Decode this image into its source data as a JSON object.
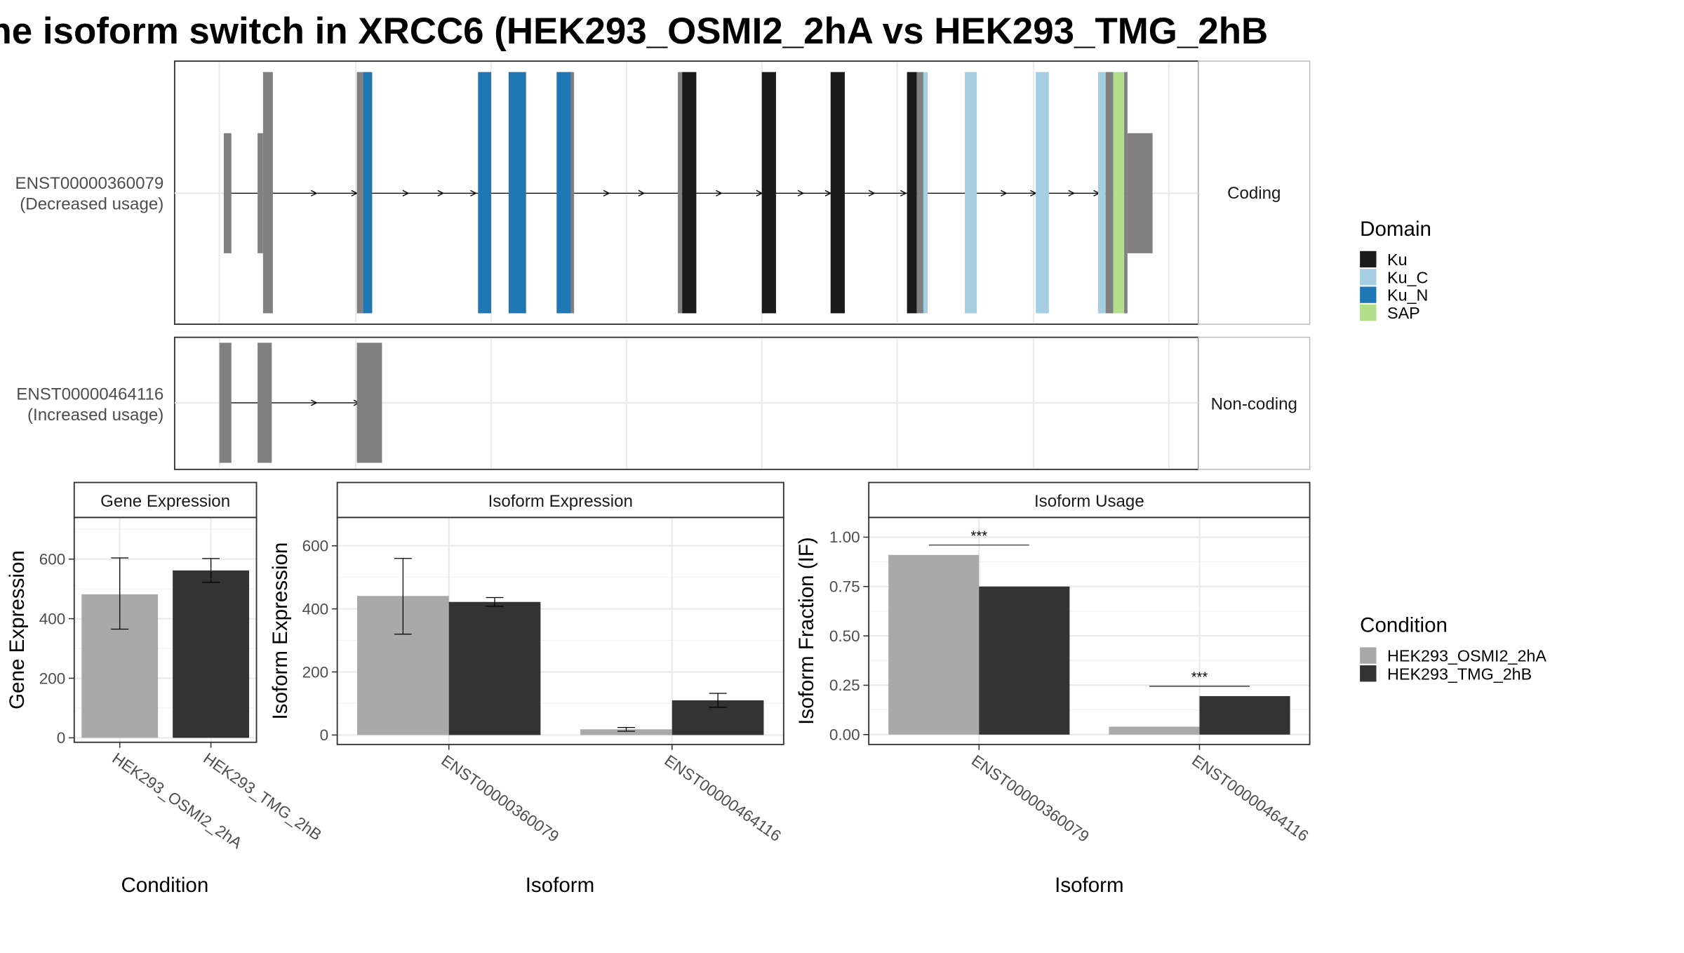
{
  "title": "he isoform switch in XRCC6 (HEK293_OSMI2_2hA vs HEK293_TMG_2hB",
  "colors": {
    "Ku": "#1a1a1a",
    "Ku_C": "#a6cee3",
    "Ku_N": "#1f78b4",
    "SAP": "#b2df8a",
    "non_domain": "#808080",
    "HEK293_OSMI2_2hA": "#a9a9a9",
    "HEK293_TMG_2hB": "#333333"
  },
  "transcripts": [
    {
      "id": "ENST00000360079",
      "usage": "(Decreased usage)",
      "strip": "Coding"
    },
    {
      "id": "ENST00000464116",
      "usage": "(Increased usage)",
      "strip": "Non-coding"
    }
  ],
  "domain_legend": {
    "title": "Domain",
    "items": [
      {
        "key": "Ku",
        "label": "Ku"
      },
      {
        "key": "Ku_C",
        "label": "Ku_C"
      },
      {
        "key": "Ku_N",
        "label": "Ku_N"
      },
      {
        "key": "SAP",
        "label": "SAP"
      }
    ]
  },
  "condition_legend": {
    "title": "Condition",
    "items": [
      {
        "key": "HEK293_OSMI2_2hA",
        "label": "HEK293_OSMI2_2hA"
      },
      {
        "key": "HEK293_TMG_2hB",
        "label": "HEK293_TMG_2hB"
      }
    ]
  },
  "chart_data": [
    {
      "type": "bar",
      "title": "Gene Expression",
      "xlabel": "Condition",
      "ylabel": "Gene Expression",
      "categories": [
        "HEK293_OSMI2_2hA",
        "HEK293_TMG_2hB"
      ],
      "values": [
        482,
        562
      ],
      "error_low": [
        365,
        522
      ],
      "error_high": [
        604,
        602
      ],
      "ylim": [
        -15,
        740
      ],
      "yticks": [
        0,
        200,
        400,
        600
      ]
    },
    {
      "type": "bar",
      "title": "Isoform Expression",
      "xlabel": "Isoform",
      "ylabel": "Isoform Expression",
      "categories": [
        "ENST00000360079",
        "ENST00000464116"
      ],
      "series": [
        {
          "name": "HEK293_OSMI2_2hA",
          "values": [
            441,
            18
          ],
          "error_low": [
            320,
            12
          ],
          "error_high": [
            560,
            24
          ]
        },
        {
          "name": "HEK293_TMG_2hB",
          "values": [
            422,
            110
          ],
          "error_low": [
            408,
            88
          ],
          "error_high": [
            436,
            132
          ]
        }
      ],
      "ylim": [
        -30,
        690
      ],
      "yticks": [
        0,
        200,
        400,
        600
      ]
    },
    {
      "type": "bar",
      "title": "Isoform Usage",
      "xlabel": "Isoform",
      "ylabel": "Isoform Fraction (IF)",
      "categories": [
        "ENST00000360079",
        "ENST00000464116"
      ],
      "series": [
        {
          "name": "HEK293_OSMI2_2hA",
          "values": [
            0.91,
            0.04
          ]
        },
        {
          "name": "HEK293_TMG_2hB",
          "values": [
            0.75,
            0.195
          ]
        }
      ],
      "significance": [
        "***",
        "***"
      ],
      "ylim": [
        -0.05,
        1.1
      ],
      "yticks": [
        "0.00",
        "0.25",
        "0.50",
        "0.75",
        "1.00"
      ]
    }
  ]
}
